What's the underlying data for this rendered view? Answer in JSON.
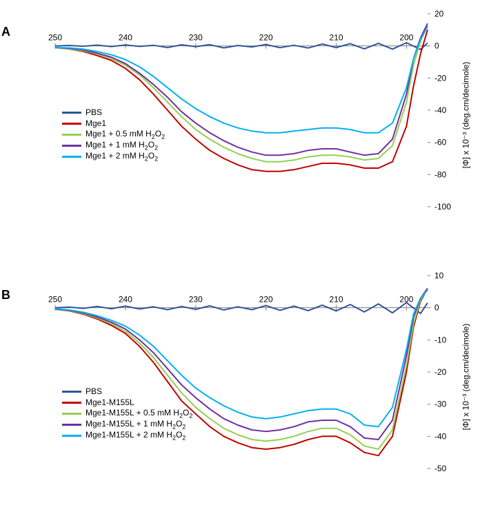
{
  "figure": {
    "background_color": "#ffffff",
    "axis_color": "#808080",
    "tick_font": 12,
    "panel_letter_font": 18,
    "line_width": 2
  },
  "panelA": {
    "letter": "A",
    "type": "line",
    "xrange": [
      250,
      197
    ],
    "yrange": [
      -100,
      20
    ],
    "xticks": [
      250,
      240,
      230,
      220,
      210,
      200
    ],
    "yticks": [
      -100,
      -80,
      -60,
      -40,
      -20,
      0,
      20
    ],
    "ylabel": "[Φ] x 10⁻³ (deg.cm/decimole)",
    "series": [
      {
        "name": "PBS",
        "raw_label": "PBS",
        "color": "#2f5597",
        "points": [
          [
            250,
            0
          ],
          [
            248,
            0.3
          ],
          [
            246,
            -0.2
          ],
          [
            244,
            0.5
          ],
          [
            242,
            -0.4
          ],
          [
            240,
            0.6
          ],
          [
            238,
            -0.3
          ],
          [
            236,
            0.4
          ],
          [
            234,
            -1.0
          ],
          [
            232,
            0.7
          ],
          [
            230,
            -0.5
          ],
          [
            228,
            0.8
          ],
          [
            226,
            -1.2
          ],
          [
            224,
            0.3
          ],
          [
            222,
            -0.6
          ],
          [
            220,
            0.9
          ],
          [
            218,
            -1.1
          ],
          [
            216,
            0.4
          ],
          [
            214,
            -1.3
          ],
          [
            212,
            1.2
          ],
          [
            210,
            -1.0
          ],
          [
            208,
            1.4
          ],
          [
            206,
            -1.8
          ],
          [
            204,
            1.6
          ],
          [
            202,
            -2.0
          ],
          [
            200,
            2.0
          ],
          [
            198,
            -2.2
          ],
          [
            197,
            1.8
          ]
        ]
      },
      {
        "name": "Mge1",
        "raw_label": "Mge1",
        "color": "#c00000",
        "points": [
          [
            250,
            -1
          ],
          [
            248,
            -2
          ],
          [
            246,
            -3.5
          ],
          [
            244,
            -6
          ],
          [
            242,
            -9
          ],
          [
            240,
            -14
          ],
          [
            238,
            -21
          ],
          [
            236,
            -30
          ],
          [
            234,
            -40
          ],
          [
            232,
            -50
          ],
          [
            230,
            -58
          ],
          [
            228,
            -65
          ],
          [
            226,
            -70
          ],
          [
            224,
            -74
          ],
          [
            222,
            -77
          ],
          [
            220,
            -78
          ],
          [
            218,
            -78
          ],
          [
            216,
            -77
          ],
          [
            214,
            -75
          ],
          [
            212,
            -73
          ],
          [
            210,
            -73
          ],
          [
            208,
            -74
          ],
          [
            206,
            -76
          ],
          [
            204,
            -76
          ],
          [
            202,
            -72
          ],
          [
            200,
            -50
          ],
          [
            199,
            -25
          ],
          [
            198,
            -5
          ],
          [
            197,
            10
          ]
        ]
      },
      {
        "name": "Mge1 + 0.5 mM H2O2",
        "raw_label": "Mge1 + 0.5 mM H<sub>2</sub>O<sub>2</sub>",
        "color": "#92d050",
        "points": [
          [
            250,
            -1
          ],
          [
            248,
            -2
          ],
          [
            246,
            -3
          ],
          [
            244,
            -5
          ],
          [
            242,
            -8
          ],
          [
            240,
            -12
          ],
          [
            238,
            -18
          ],
          [
            236,
            -26
          ],
          [
            234,
            -35
          ],
          [
            232,
            -44
          ],
          [
            230,
            -52
          ],
          [
            228,
            -58
          ],
          [
            226,
            -63
          ],
          [
            224,
            -67
          ],
          [
            222,
            -70
          ],
          [
            220,
            -72
          ],
          [
            218,
            -72
          ],
          [
            216,
            -71
          ],
          [
            214,
            -69
          ],
          [
            212,
            -68
          ],
          [
            210,
            -68
          ],
          [
            208,
            -69
          ],
          [
            206,
            -71
          ],
          [
            204,
            -70
          ],
          [
            202,
            -62
          ],
          [
            200,
            -35
          ],
          [
            199,
            -12
          ],
          [
            198,
            3
          ],
          [
            197,
            13
          ]
        ]
      },
      {
        "name": "Mge1 + 1 mM H2O2",
        "raw_label": "Mge1 + 1 mM H<sub>2</sub>O<sub>2</sub>",
        "color": "#7030a0",
        "points": [
          [
            250,
            -1
          ],
          [
            248,
            -1.5
          ],
          [
            246,
            -2.5
          ],
          [
            244,
            -4.5
          ],
          [
            242,
            -7
          ],
          [
            240,
            -11
          ],
          [
            238,
            -17
          ],
          [
            236,
            -24
          ],
          [
            234,
            -32
          ],
          [
            232,
            -41
          ],
          [
            230,
            -48
          ],
          [
            228,
            -54
          ],
          [
            226,
            -59
          ],
          [
            224,
            -63
          ],
          [
            222,
            -66
          ],
          [
            220,
            -68
          ],
          [
            218,
            -68
          ],
          [
            216,
            -67
          ],
          [
            214,
            -65
          ],
          [
            212,
            -64
          ],
          [
            210,
            -64
          ],
          [
            208,
            -66
          ],
          [
            206,
            -68
          ],
          [
            204,
            -67
          ],
          [
            202,
            -58
          ],
          [
            200,
            -30
          ],
          [
            199,
            -8
          ],
          [
            198,
            5
          ],
          [
            197,
            14
          ]
        ]
      },
      {
        "name": "Mge1 + 2 mM H2O2",
        "raw_label": "Mge1 + 2 mM H<sub>2</sub>O<sub>2</sub>",
        "color": "#00b0f0",
        "points": [
          [
            250,
            -1
          ],
          [
            248,
            -1.2
          ],
          [
            246,
            -2
          ],
          [
            244,
            -3.5
          ],
          [
            242,
            -5.5
          ],
          [
            240,
            -8.5
          ],
          [
            238,
            -13
          ],
          [
            236,
            -19
          ],
          [
            234,
            -26
          ],
          [
            232,
            -33
          ],
          [
            230,
            -39
          ],
          [
            228,
            -44
          ],
          [
            226,
            -48
          ],
          [
            224,
            -51
          ],
          [
            222,
            -53
          ],
          [
            220,
            -54
          ],
          [
            218,
            -54
          ],
          [
            216,
            -53
          ],
          [
            214,
            -52
          ],
          [
            212,
            -51
          ],
          [
            210,
            -51
          ],
          [
            208,
            -52
          ],
          [
            206,
            -54
          ],
          [
            204,
            -54
          ],
          [
            202,
            -48
          ],
          [
            200,
            -26
          ],
          [
            199,
            -8
          ],
          [
            198,
            4
          ],
          [
            197,
            12
          ]
        ]
      }
    ]
  },
  "panelB": {
    "letter": "B",
    "type": "line",
    "xrange": [
      250,
      197
    ],
    "yrange": [
      -50,
      10
    ],
    "xticks": [
      250,
      240,
      230,
      220,
      210,
      200
    ],
    "yticks": [
      -50,
      -40,
      -30,
      -20,
      -10,
      0,
      10
    ],
    "ylabel": "[Φ] x 10⁻³ (deg.cm/decimole)",
    "series": [
      {
        "name": "PBS",
        "raw_label": "PBS",
        "color": "#2f5597",
        "points": [
          [
            250,
            0
          ],
          [
            248,
            0.2
          ],
          [
            246,
            -0.2
          ],
          [
            244,
            0.4
          ],
          [
            242,
            -0.3
          ],
          [
            240,
            0.5
          ],
          [
            238,
            -0.4
          ],
          [
            236,
            0.3
          ],
          [
            234,
            -0.6
          ],
          [
            232,
            0.4
          ],
          [
            230,
            -0.5
          ],
          [
            228,
            0.6
          ],
          [
            226,
            -0.7
          ],
          [
            224,
            0.3
          ],
          [
            222,
            -0.6
          ],
          [
            220,
            0.7
          ],
          [
            218,
            -0.8
          ],
          [
            216,
            0.5
          ],
          [
            214,
            -0.9
          ],
          [
            212,
            0.8
          ],
          [
            210,
            -1.0
          ],
          [
            208,
            1.0
          ],
          [
            206,
            -1.3
          ],
          [
            204,
            1.2
          ],
          [
            202,
            -1.6
          ],
          [
            200,
            1.6
          ],
          [
            198,
            -1.8
          ],
          [
            197,
            1.5
          ]
        ]
      },
      {
        "name": "Mge1-M155L",
        "raw_label": "Mge1-M155L",
        "color": "#c00000",
        "points": [
          [
            250,
            -0.5
          ],
          [
            248,
            -1
          ],
          [
            246,
            -2
          ],
          [
            244,
            -3.5
          ],
          [
            242,
            -5.5
          ],
          [
            240,
            -8
          ],
          [
            238,
            -12
          ],
          [
            236,
            -17
          ],
          [
            234,
            -23
          ],
          [
            232,
            -29
          ],
          [
            230,
            -33
          ],
          [
            228,
            -37
          ],
          [
            226,
            -40
          ],
          [
            224,
            -42
          ],
          [
            222,
            -43.5
          ],
          [
            220,
            -44
          ],
          [
            218,
            -43.5
          ],
          [
            216,
            -42.5
          ],
          [
            214,
            -41
          ],
          [
            212,
            -40
          ],
          [
            210,
            -40
          ],
          [
            208,
            -42
          ],
          [
            206,
            -45
          ],
          [
            204,
            -46
          ],
          [
            202,
            -40
          ],
          [
            200,
            -20
          ],
          [
            199,
            -6
          ],
          [
            198,
            2
          ],
          [
            197,
            6
          ]
        ]
      },
      {
        "name": "Mge1-M155L + 0.5 mM H2O2",
        "raw_label": "Mge1-M155L + 0.5 mM H<sub>2</sub>O<sub>2</sub>",
        "color": "#92d050",
        "points": [
          [
            250,
            -0.5
          ],
          [
            248,
            -0.9
          ],
          [
            246,
            -1.8
          ],
          [
            244,
            -3.2
          ],
          [
            242,
            -5
          ],
          [
            240,
            -7.3
          ],
          [
            238,
            -11
          ],
          [
            236,
            -15.5
          ],
          [
            234,
            -21
          ],
          [
            232,
            -26.5
          ],
          [
            230,
            -31
          ],
          [
            228,
            -34.5
          ],
          [
            226,
            -37.5
          ],
          [
            224,
            -39.5
          ],
          [
            222,
            -41
          ],
          [
            220,
            -41.5
          ],
          [
            218,
            -41
          ],
          [
            216,
            -40
          ],
          [
            214,
            -38.5
          ],
          [
            212,
            -37.5
          ],
          [
            210,
            -37.5
          ],
          [
            208,
            -39.5
          ],
          [
            206,
            -43
          ],
          [
            204,
            -44
          ],
          [
            202,
            -38
          ],
          [
            200,
            -18
          ],
          [
            199,
            -5
          ],
          [
            198,
            2.5
          ],
          [
            197,
            6
          ]
        ]
      },
      {
        "name": "Mge1-M155L + 1 mM H2O2",
        "raw_label": "Mge1-M155L + 1 mM H<sub>2</sub>O<sub>2</sub>",
        "color": "#7030a0",
        "points": [
          [
            250,
            -0.4
          ],
          [
            248,
            -0.8
          ],
          [
            246,
            -1.6
          ],
          [
            244,
            -2.9
          ],
          [
            242,
            -4.5
          ],
          [
            240,
            -6.6
          ],
          [
            238,
            -10
          ],
          [
            236,
            -14
          ],
          [
            234,
            -19
          ],
          [
            232,
            -24
          ],
          [
            230,
            -28
          ],
          [
            228,
            -31.5
          ],
          [
            226,
            -34.5
          ],
          [
            224,
            -36.5
          ],
          [
            222,
            -38
          ],
          [
            220,
            -38.5
          ],
          [
            218,
            -38
          ],
          [
            216,
            -37
          ],
          [
            214,
            -35.5
          ],
          [
            212,
            -35
          ],
          [
            210,
            -35
          ],
          [
            208,
            -37
          ],
          [
            206,
            -40.5
          ],
          [
            204,
            -41
          ],
          [
            202,
            -35
          ],
          [
            200,
            -15
          ],
          [
            199,
            -3
          ],
          [
            198,
            3
          ],
          [
            197,
            6
          ]
        ]
      },
      {
        "name": "Mge1-M155L + 2 mM H2O2",
        "raw_label": "Mge1-M155L + 2 mM H<sub>2</sub>O<sub>2</sub>",
        "color": "#00b0f0",
        "points": [
          [
            250,
            -0.3
          ],
          [
            248,
            -0.7
          ],
          [
            246,
            -1.4
          ],
          [
            244,
            -2.5
          ],
          [
            242,
            -3.9
          ],
          [
            240,
            -5.7
          ],
          [
            238,
            -8.5
          ],
          [
            236,
            -12
          ],
          [
            234,
            -16.5
          ],
          [
            232,
            -21
          ],
          [
            230,
            -25
          ],
          [
            228,
            -28
          ],
          [
            226,
            -30.5
          ],
          [
            224,
            -32.5
          ],
          [
            222,
            -34
          ],
          [
            220,
            -34.5
          ],
          [
            218,
            -34
          ],
          [
            216,
            -33
          ],
          [
            214,
            -32
          ],
          [
            212,
            -31.5
          ],
          [
            210,
            -31.5
          ],
          [
            208,
            -33
          ],
          [
            206,
            -36.5
          ],
          [
            204,
            -37
          ],
          [
            202,
            -31
          ],
          [
            200,
            -13
          ],
          [
            199,
            -2
          ],
          [
            198,
            3
          ],
          [
            197,
            5.5
          ]
        ]
      }
    ]
  }
}
